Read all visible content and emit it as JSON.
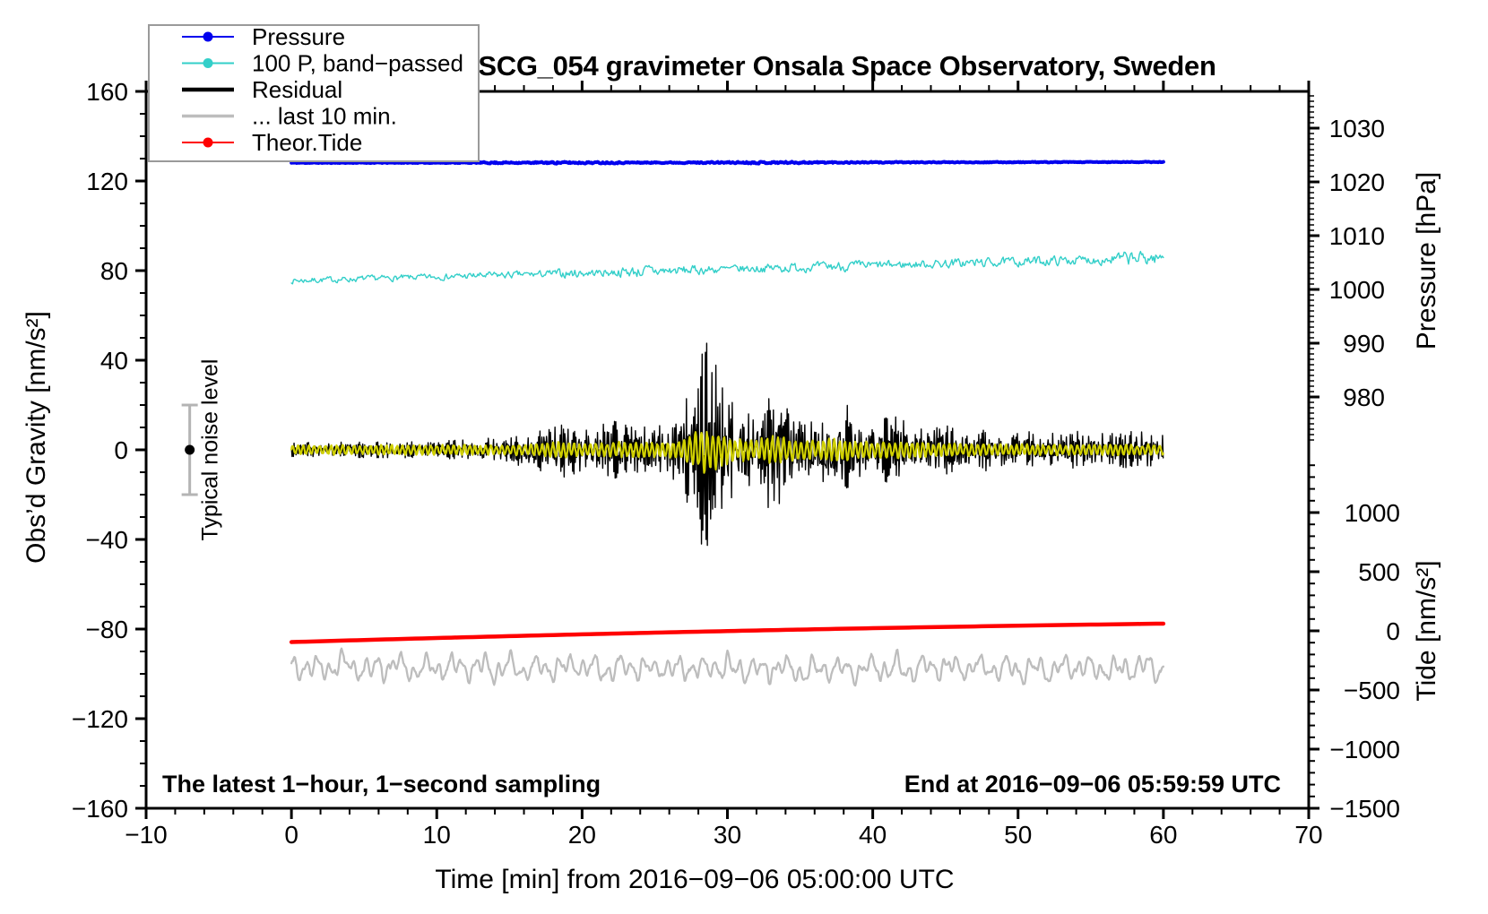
{
  "chart_data": {
    "type": "line",
    "title": "SCG_054 gravimeter Onsala Space Observatory, Sweden",
    "xlabel": "Time [min] from 2016−09−06 05:00:00 UTC",
    "grid": false,
    "legend_position": "top-left",
    "x_axis": {
      "range": [
        -10,
        70
      ],
      "minor_step": 2,
      "ticks": [
        {
          "v": -10,
          "l": "−10"
        },
        {
          "v": 0,
          "l": "0"
        },
        {
          "v": 10,
          "l": "10"
        },
        {
          "v": 20,
          "l": "20"
        },
        {
          "v": 30,
          "l": "30"
        },
        {
          "v": 40,
          "l": "40"
        },
        {
          "v": 50,
          "l": "50"
        },
        {
          "v": 60,
          "l": "60"
        },
        {
          "v": 70,
          "l": "70"
        }
      ]
    },
    "y_left": {
      "label": "Obs’d Gravity [nm/s²]",
      "range": [
        -160,
        160
      ],
      "minor_step": 10,
      "ticks": [
        {
          "v": 160,
          "l": "160"
        },
        {
          "v": 120,
          "l": "120"
        },
        {
          "v": 80,
          "l": "80"
        },
        {
          "v": 40,
          "l": "40"
        },
        {
          "v": 0,
          "l": "0"
        },
        {
          "v": -40,
          "l": "−40"
        },
        {
          "v": -80,
          "l": "−80"
        },
        {
          "v": -120,
          "l": "−120"
        },
        {
          "v": -160,
          "l": "−160"
        }
      ]
    },
    "y_right_pressure": {
      "label": "Pressure [hPa]",
      "minor_step": 1,
      "minor_range": [
        972,
        1036
      ],
      "ticks": [
        {
          "v": 1030,
          "l": "1030"
        },
        {
          "v": 1020,
          "l": "1020"
        },
        {
          "v": 1010,
          "l": "1010"
        },
        {
          "v": 1000,
          "l": "1000"
        },
        {
          "v": 990,
          "l": "990"
        },
        {
          "v": 980,
          "l": "980"
        }
      ]
    },
    "y_right_tide": {
      "label": "Tide [nm/s²]",
      "minor_step": 100,
      "minor_range": [
        -1500,
        1500
      ],
      "ticks": [
        {
          "v": 1000,
          "l": "1000"
        },
        {
          "v": 500,
          "l": "500"
        },
        {
          "v": 0,
          "l": "0"
        },
        {
          "v": -500,
          "l": "−500"
        },
        {
          "v": -1000,
          "l": "−1000"
        },
        {
          "v": -1500,
          "l": "−1500"
        }
      ]
    },
    "legend": [
      {
        "label": "Pressure",
        "color": "#0000ee",
        "marker": true,
        "lw": 2
      },
      {
        "label": "100 P, band−passed",
        "color": "#33cfc9",
        "marker": true,
        "lw": 2
      },
      {
        "label": "Residual",
        "color": "#000000",
        "marker": false,
        "lw": 4.5
      },
      {
        "label": "... last 10 min.",
        "color": "#bdbdbd",
        "marker": false,
        "lw": 3.5
      },
      {
        "label": "Theor.Tide",
        "color": "#ff0000",
        "marker": true,
        "lw": 2
      }
    ],
    "annotations": {
      "sampling_note": "The latest 1−hour, 1−second sampling",
      "end_note": "End at 2016−09−06 05:59:59 UTC",
      "noise_label": "Typical noise level"
    },
    "noise_bar": {
      "x_min": -7,
      "center": 0,
      "half_range": 20
    },
    "series": [
      {
        "id": "pressure",
        "axis": "pressure",
        "color": "#0000ee",
        "width": 4,
        "summary": "Air pressure nearly constant ~1023.6 hPa from 0 to 60 min",
        "gen": {
          "seed": 11,
          "dt": 0.06,
          "ar": 0.3,
          "scale": 0.5,
          "clamp": 2,
          "baseline": [
            [
              0,
              1023.55
            ],
            [
              30,
              1023.6
            ],
            [
              60,
              1023.7
            ]
          ],
          "envelope": [
            [
              0,
              0.12
            ],
            [
              12,
              0.14
            ],
            [
              14,
              0.28
            ],
            [
              16,
              0.18
            ],
            [
              18,
              0.32
            ],
            [
              22,
              0.28
            ],
            [
              25,
              0.18
            ],
            [
              28,
              0.22
            ],
            [
              30,
              0.28
            ],
            [
              33,
              0.32
            ],
            [
              36,
              0.28
            ],
            [
              38,
              0.22
            ],
            [
              45,
              0.14
            ],
            [
              60,
              0.12
            ]
          ]
        }
      },
      {
        "id": "pressure-bandpassed-x100",
        "axis": "gravity",
        "color": "#33cfc9",
        "width": 1.4,
        "summary": "100×band-passed pressure, centered 75→86 nm/s², jitter ±2–8 nm/s²",
        "gen": {
          "seed": 7,
          "dt": 0.075,
          "ar": 0.45,
          "scale": 0.6,
          "clamp": 1.8,
          "baseline": [
            [
              0,
              75.5
            ],
            [
              60,
              85.7
            ]
          ],
          "envelope": [
            [
              0,
              1.8
            ],
            [
              10,
              1.8
            ],
            [
              13,
              2.2
            ],
            [
              17,
              2.0
            ],
            [
              19,
              3.0
            ],
            [
              21,
              2.2
            ],
            [
              23,
              3.2
            ],
            [
              25,
              4.0
            ],
            [
              26,
              3.0
            ],
            [
              28,
              2.8
            ],
            [
              30,
              2.4
            ],
            [
              32,
              2.6
            ],
            [
              34,
              3.0
            ],
            [
              36,
              2.6
            ],
            [
              38,
              3.2
            ],
            [
              40,
              2.6
            ],
            [
              43,
              2.4
            ],
            [
              46,
              3.0
            ],
            [
              49,
              2.6
            ],
            [
              52,
              3.0
            ],
            [
              55,
              2.6
            ],
            [
              57,
              4.0
            ],
            [
              58.5,
              4.5
            ],
            [
              60,
              3.5
            ]
          ]
        }
      },
      {
        "id": "residual-last-10min",
        "axis": "gravity",
        "color": "#bdbdbd",
        "width": 2.3,
        "summary": "Gray smoothed trace centered ~−97.5 nm/s², wiggles ±8 nm/s², 0–60 min",
        "gen": {
          "seed": 9,
          "dt": 0.05,
          "ar": 0.85,
          "scale": 0.9,
          "clamp": 2.2,
          "baseline": [
            [
              0,
              -97.5
            ],
            [
              60,
              -97.5
            ]
          ],
          "envelope": [
            [
              0,
              1
            ],
            [
              60,
              1
            ]
          ],
          "sines": [
            [
              3.1,
              0.83,
              0.5
            ],
            [
              2.7,
              1.9,
              2.1
            ],
            [
              1.4,
              0.45,
              4.0
            ]
          ]
        }
      },
      {
        "id": "theoretical-tide",
        "axis": "tide",
        "color": "#ff0000",
        "width": 4.5,
        "summary": "Theoretical tide rising smoothly from −95 to +61 nm/s² (tide axis)",
        "gen": {
          "seed": 1,
          "dt": 0.5,
          "quad": [
            [
              0,
              -95
            ],
            [
              30,
              -2
            ],
            [
              60,
              61
            ]
          ]
        }
      },
      {
        "id": "residual",
        "axis": "gravity",
        "color": "#000000",
        "width": 1.4,
        "summary": "Residual around 0 nm/s²; quiet ±3, seismic bursts peaking ±45 near 28.5 min, ±28 near 33 min, ±23 near 38 min",
        "gen": {
          "seed": 3,
          "dt": 0.045,
          "ar": -0.55,
          "scale": 0.85,
          "clamp": 1.1,
          "baseline": [
            [
              0,
              0
            ],
            [
              60,
              0
            ]
          ],
          "envelope": [
            [
              0,
              3
            ],
            [
              8,
              3.2
            ],
            [
              12,
              4
            ],
            [
              15,
              5.5
            ],
            [
              17,
              8
            ],
            [
              18.4,
              13
            ],
            [
              19.4,
              10
            ],
            [
              20.5,
              7.5
            ],
            [
              22,
              12
            ],
            [
              23.5,
              9
            ],
            [
              25,
              9.5
            ],
            [
              26.3,
              12
            ],
            [
              27.3,
              22
            ],
            [
              28.2,
              38
            ],
            [
              28.7,
              45
            ],
            [
              29.4,
              32
            ],
            [
              30.2,
              20
            ],
            [
              31,
              15
            ],
            [
              32,
              14
            ],
            [
              33.2,
              28
            ],
            [
              34,
              20
            ],
            [
              35,
              11
            ],
            [
              36.2,
              13
            ],
            [
              37.3,
              17
            ],
            [
              37.9,
              23
            ],
            [
              38.6,
              13
            ],
            [
              39.6,
              9
            ],
            [
              40.6,
              12
            ],
            [
              41.6,
              15
            ],
            [
              42.6,
              10
            ],
            [
              43.6,
              8
            ],
            [
              44.6,
              11
            ],
            [
              46,
              7.5
            ],
            [
              47.5,
              9
            ],
            [
              49,
              6.5
            ],
            [
              50.5,
              7.5
            ],
            [
              52,
              6.5
            ],
            [
              54,
              7.5
            ],
            [
              56,
              6.5
            ],
            [
              58,
              7.5
            ],
            [
              60,
              6.5
            ]
          ]
        }
      },
      {
        "id": "residual-bandpassed",
        "axis": "gravity",
        "color": "#d0d000",
        "width": 2.2,
        "summary": "Yellow band-passed residual overlay, oscillation ±2 quiet up to ±8.5 nm/s² in main burst",
        "gen": {
          "seed": 5,
          "dt": 0.045,
          "ar": 0.2,
          "scale": 0.25,
          "clamp": 1.5,
          "baseline": [
            [
              0,
              0
            ],
            [
              60,
              0
            ]
          ],
          "sines": [
            [
              1,
              0.38,
              0
            ]
          ],
          "wobble": [
            0.9,
            6.3
          ],
          "envelope": [
            [
              0,
              1.8
            ],
            [
              15,
              1.9
            ],
            [
              17,
              2.2
            ],
            [
              18.4,
              3.2
            ],
            [
              20,
              2.4
            ],
            [
              22,
              2.8
            ],
            [
              26,
              3.0
            ],
            [
              27.3,
              5.0
            ],
            [
              28.5,
              8.5
            ],
            [
              29.4,
              6.5
            ],
            [
              30.5,
              4.5
            ],
            [
              32,
              3.8
            ],
            [
              33.2,
              5.5
            ],
            [
              34.5,
              4.0
            ],
            [
              36,
              3.2
            ],
            [
              37.5,
              4.5
            ],
            [
              39,
              3.0
            ],
            [
              41.5,
              3.4
            ],
            [
              44,
              2.6
            ],
            [
              48,
              2.2
            ],
            [
              52,
              2.0
            ],
            [
              60,
              2.0
            ]
          ]
        }
      }
    ]
  }
}
